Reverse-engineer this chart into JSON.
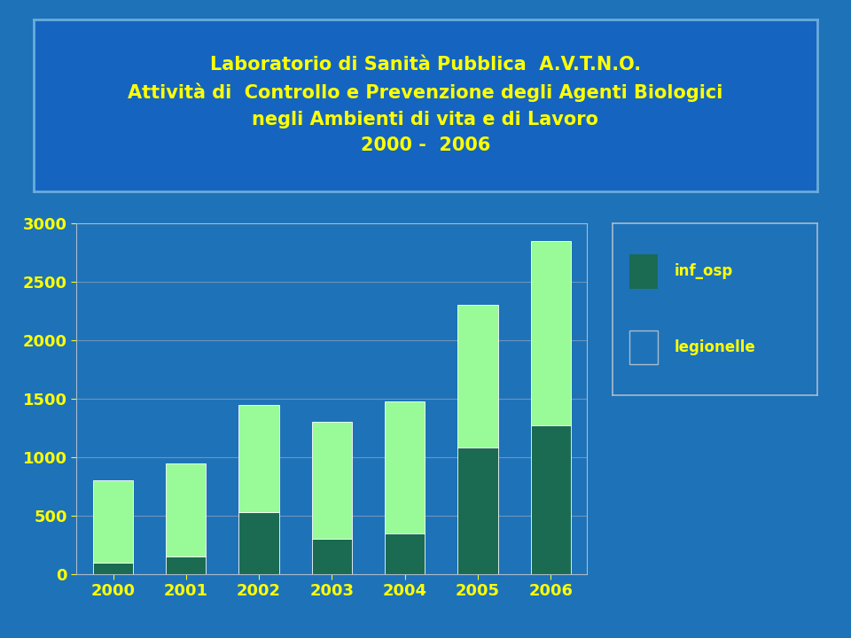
{
  "years": [
    "2000",
    "2001",
    "2002",
    "2003",
    "2004",
    "2005",
    "2006"
  ],
  "inf_osp": [
    100,
    150,
    530,
    300,
    350,
    1080,
    1270
  ],
  "legionelle": [
    700,
    800,
    920,
    1000,
    1130,
    1220,
    1580
  ],
  "title_line1": "Laboratorio di Sanità Pubblica  A.V.T.N.O.",
  "title_line2": "Attività di  Controllo e Prevenzione degli Agenti Biologici",
  "title_line3": "negli Ambienti di vita e di Lavoro",
  "title_line4": "2000 -  2006",
  "title_color": "#FFFF00",
  "title_bg_color": "#1565C0",
  "title_border_color": "#6AACDC",
  "bg_color": "#1E72B8",
  "bar_color_inf_osp": "#1A6B52",
  "bar_color_legionelle": "#98FB98",
  "legend_label_inf_osp": "inf_osp",
  "legend_label_legionelle": "legionelle",
  "yticks": [
    0,
    500,
    1000,
    1500,
    2000,
    2500,
    3000
  ],
  "ylim": [
    0,
    3000
  ],
  "tick_color": "#FFFF00",
  "grid_color": "#7799BB",
  "spine_color": "#AABBCC"
}
